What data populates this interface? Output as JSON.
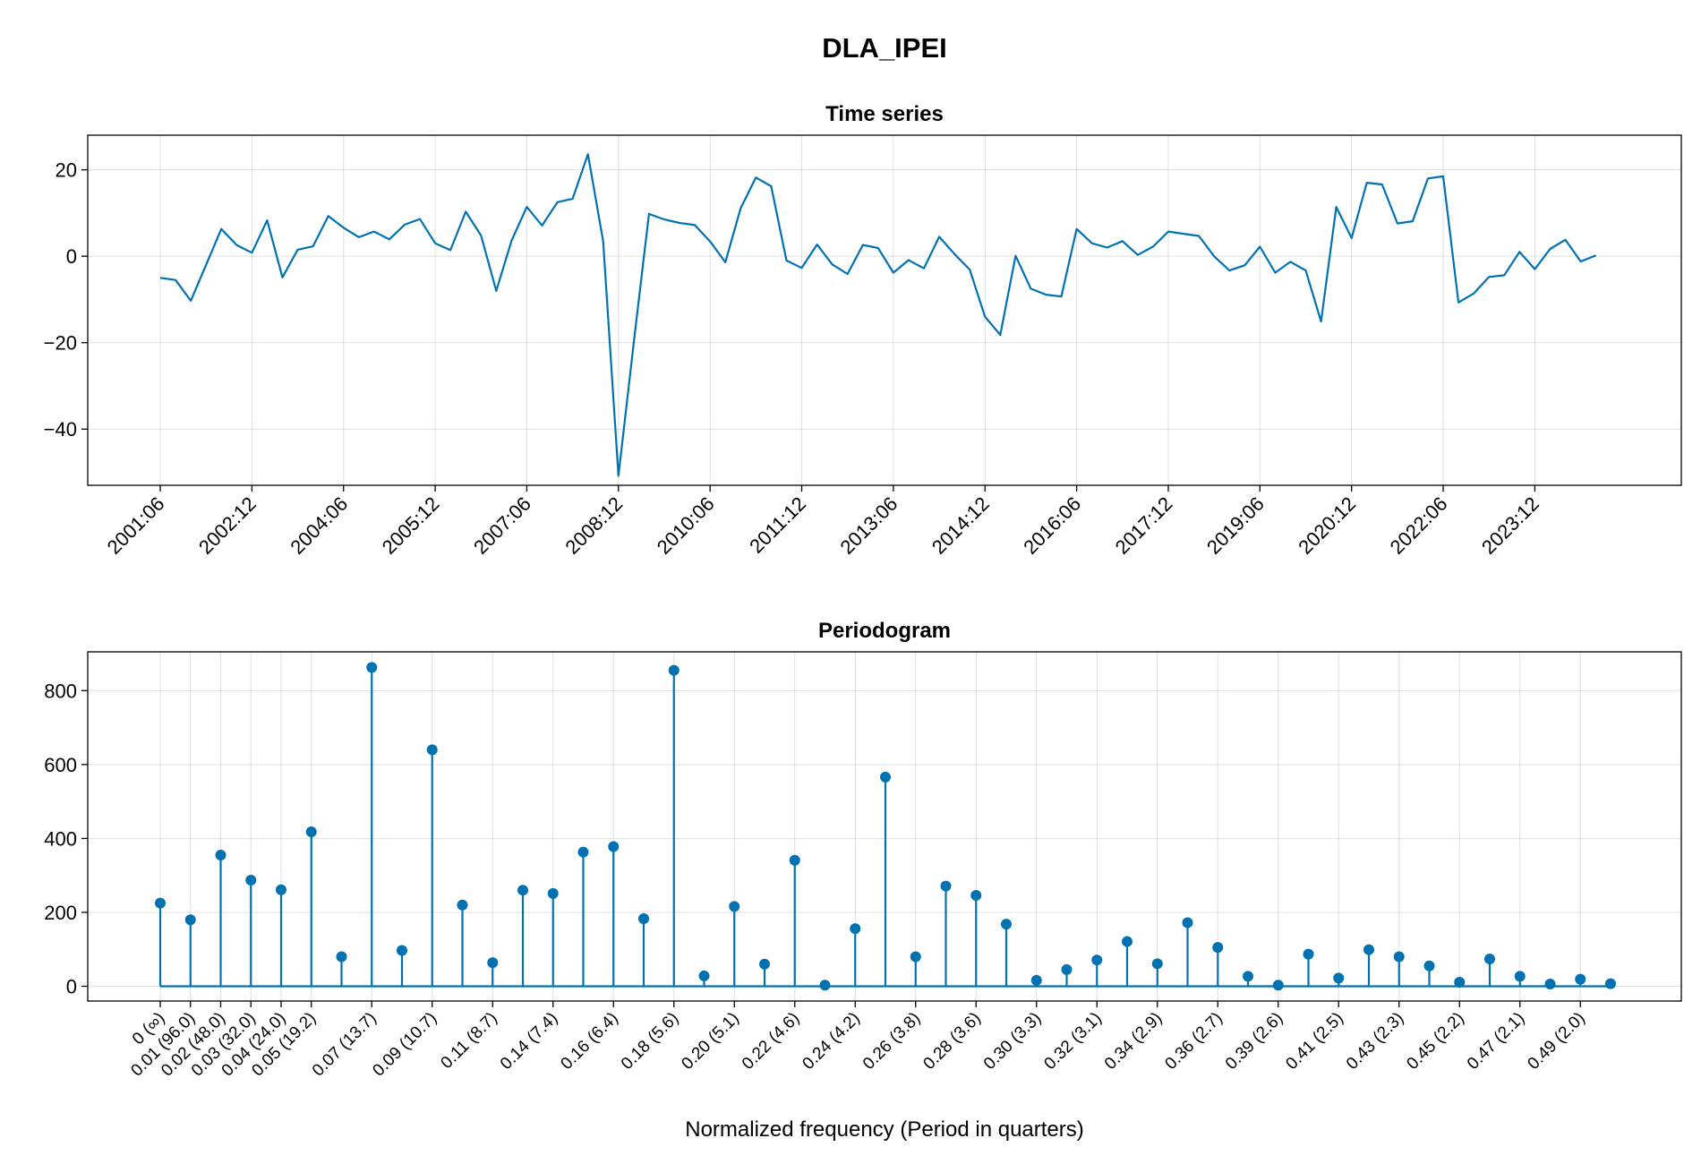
{
  "figure": {
    "title": "DLA_IPEI"
  },
  "chart_data": [
    {
      "type": "line",
      "title": "Time series",
      "xlabel": "",
      "ylabel": "",
      "x_unit": "quarter (year:month)",
      "x_start": "2001:06",
      "x_ticks": [
        "2001:06",
        "2002:12",
        "2004:06",
        "2005:12",
        "2007:06",
        "2008:12",
        "2010:06",
        "2011:12",
        "2013:06",
        "2014:12",
        "2016:06",
        "2017:12",
        "2019:06",
        "2020:12",
        "2022:06",
        "2023:12"
      ],
      "y_ticks": [
        -40,
        -20,
        0,
        20
      ],
      "ylim": [
        -53,
        28
      ],
      "grid": true,
      "color": "#0072b2",
      "values": [
        -5.0,
        -5.5,
        -10.3,
        -2.0,
        6.3,
        2.6,
        0.8,
        8.3,
        -4.9,
        1.5,
        2.3,
        9.3,
        6.6,
        4.4,
        5.7,
        3.9,
        7.3,
        8.6,
        3.0,
        1.4,
        10.3,
        4.8,
        -8.0,
        3.6,
        11.4,
        7.1,
        12.5,
        13.3,
        23.6,
        3.5,
        -50.8,
        -20.0,
        9.8,
        8.5,
        7.7,
        7.2,
        3.4,
        -1.4,
        11.1,
        18.2,
        16.2,
        -1.0,
        -2.7,
        2.7,
        -1.9,
        -4.1,
        2.6,
        1.9,
        -3.8,
        -0.9,
        -2.8,
        4.5,
        0.5,
        -3.1,
        -14.0,
        -18.2,
        0.1,
        -7.5,
        -8.9,
        -9.3,
        6.3,
        3.0,
        2.0,
        3.5,
        0.3,
        2.2,
        5.7,
        5.2,
        4.7,
        0.0,
        -3.3,
        -2.1,
        2.2,
        -3.8,
        -1.3,
        -3.3,
        -15.1,
        11.4,
        4.2,
        17.0,
        16.6,
        7.6,
        8.1,
        18.0,
        18.5,
        -10.7,
        -8.6,
        -4.8,
        -4.4,
        1.0,
        -3.0,
        1.7,
        3.8,
        -1.2,
        0.2
      ]
    },
    {
      "type": "stem",
      "title": "Periodogram",
      "xlabel": "Normalized frequency (Period in quarters)",
      "ylabel": "",
      "x_tick_labels": [
        "0 (∞)",
        "0.01 (96.0)",
        "0.02 (48.0)",
        "0.03 (32.0)",
        "0.04 (24.0)",
        "0.05 (19.2)",
        "0.07 (13.7)",
        "0.09 (10.7)",
        "0.11 (8.7)",
        "0.14 (7.4)",
        "0.16 (6.4)",
        "0.18 (5.6)",
        "0.20 (5.1)",
        "0.22 (4.6)",
        "0.24 (4.2)",
        "0.26 (3.8)",
        "0.28 (3.6)",
        "0.30 (3.3)",
        "0.32 (3.1)",
        "0.34 (2.9)",
        "0.36 (2.7)",
        "0.39 (2.6)",
        "0.41 (2.5)",
        "0.43 (2.3)",
        "0.45 (2.2)",
        "0.47 (2.1)",
        "0.49 (2.0)"
      ],
      "x_tick_indices": [
        0,
        1,
        2,
        3,
        4,
        5,
        7,
        9,
        11,
        13,
        15,
        17,
        19,
        21,
        23,
        25,
        27,
        29,
        31,
        33,
        35,
        37,
        39,
        41,
        43,
        45,
        47
      ],
      "y_ticks": [
        0,
        200,
        400,
        600,
        800
      ],
      "ylim": [
        -40,
        905
      ],
      "grid": true,
      "color": "#0072b2",
      "values": [
        225,
        180,
        355,
        287,
        261,
        418,
        80,
        863,
        97,
        640,
        220,
        64,
        260,
        251,
        363,
        378,
        183,
        855,
        28,
        216,
        60,
        341,
        3,
        156,
        566,
        80,
        271,
        246,
        168,
        16,
        45,
        71,
        121,
        61,
        172,
        105,
        27,
        3,
        87,
        22,
        99,
        80,
        55,
        11,
        74,
        27,
        6,
        19,
        7
      ]
    }
  ]
}
